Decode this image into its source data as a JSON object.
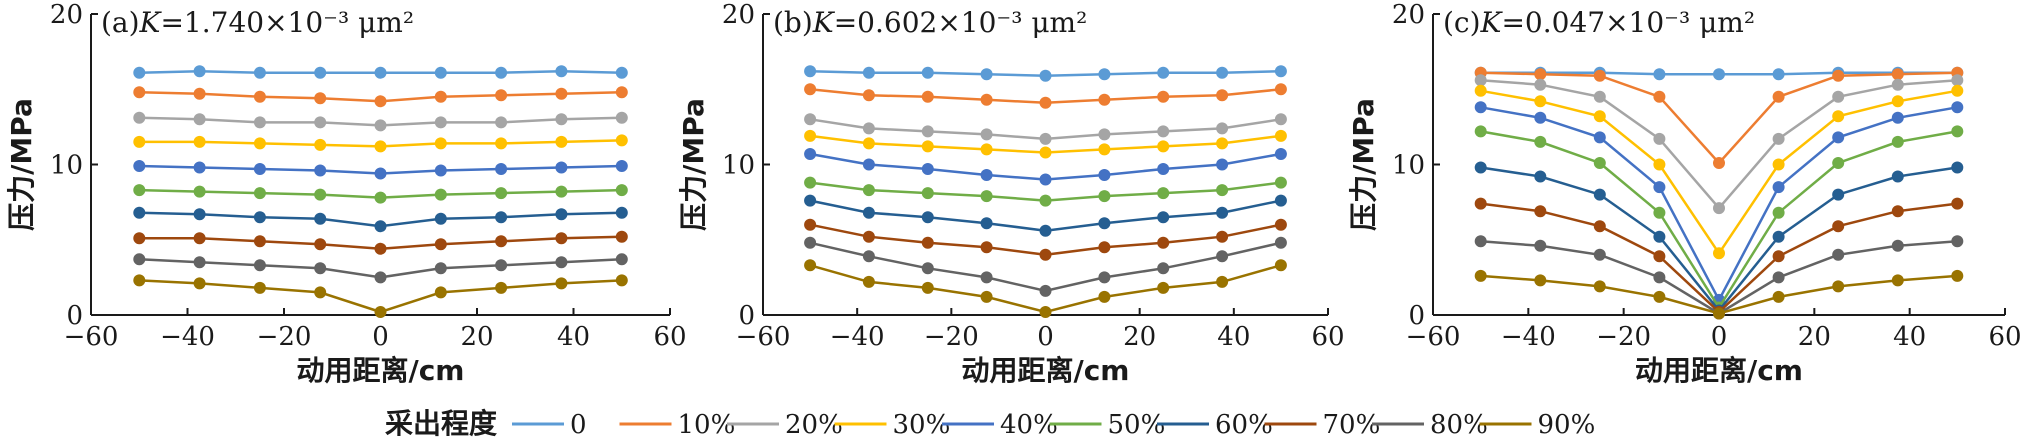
{
  "colors": [
    "#5B9BD5",
    "#ED7D31",
    "#A5A5A5",
    "#FFC000",
    "#4472C4",
    "#70AD47",
    "#255E91",
    "#9E480E",
    "#636363",
    "#997300"
  ],
  "legend": {
    "title": "采出程度",
    "labels": [
      "0",
      "10%",
      "20%",
      "30%",
      "40%",
      "50%",
      "60%",
      "70%",
      "80%",
      "90%"
    ]
  },
  "chart_data": [
    {
      "type": "line",
      "panel_label": "(a)",
      "k_symbol": "K",
      "k_value": "=1.740",
      "k_unit": "×10⁻³ μm²",
      "xlabel": "动用距离/cm",
      "ylabel": "压力/MPa",
      "xlim": [
        -60,
        60
      ],
      "ylim": [
        0,
        20
      ],
      "xticks": [
        -60,
        -40,
        -20,
        0,
        20,
        40,
        60
      ],
      "yticks": [
        0,
        10,
        20
      ],
      "x": [
        -50,
        -37.5,
        -25,
        -12.5,
        0,
        12.5,
        25,
        37.5,
        50
      ],
      "series": [
        {
          "name": "0",
          "values": [
            16.1,
            16.2,
            16.1,
            16.1,
            16.1,
            16.1,
            16.1,
            16.2,
            16.1
          ]
        },
        {
          "name": "10%",
          "values": [
            14.8,
            14.7,
            14.5,
            14.4,
            14.2,
            14.5,
            14.6,
            14.7,
            14.8
          ]
        },
        {
          "name": "20%",
          "values": [
            13.1,
            13.0,
            12.8,
            12.8,
            12.6,
            12.8,
            12.8,
            13.0,
            13.1
          ]
        },
        {
          "name": "30%",
          "values": [
            11.5,
            11.5,
            11.4,
            11.3,
            11.2,
            11.4,
            11.4,
            11.5,
            11.6
          ]
        },
        {
          "name": "40%",
          "values": [
            9.9,
            9.8,
            9.7,
            9.6,
            9.4,
            9.6,
            9.7,
            9.8,
            9.9
          ]
        },
        {
          "name": "50%",
          "values": [
            8.3,
            8.2,
            8.1,
            8.0,
            7.8,
            8.0,
            8.1,
            8.2,
            8.3
          ]
        },
        {
          "name": "60%",
          "values": [
            6.8,
            6.7,
            6.5,
            6.4,
            5.9,
            6.4,
            6.5,
            6.7,
            6.8
          ]
        },
        {
          "name": "70%",
          "values": [
            5.1,
            5.1,
            4.9,
            4.7,
            4.4,
            4.7,
            4.9,
            5.1,
            5.2
          ]
        },
        {
          "name": "80%",
          "values": [
            3.7,
            3.5,
            3.3,
            3.1,
            2.5,
            3.1,
            3.3,
            3.5,
            3.7
          ]
        },
        {
          "name": "90%",
          "values": [
            2.3,
            2.1,
            1.8,
            1.5,
            0.2,
            1.5,
            1.8,
            2.1,
            2.3
          ]
        }
      ]
    },
    {
      "type": "line",
      "panel_label": "(b)",
      "k_symbol": "K",
      "k_value": "=0.602",
      "k_unit": "×10⁻³ μm²",
      "xlabel": "动用距离/cm",
      "ylabel": "压力/MPa",
      "xlim": [
        -60,
        60
      ],
      "ylim": [
        0,
        20
      ],
      "xticks": [
        -60,
        -40,
        -20,
        0,
        20,
        40,
        60
      ],
      "yticks": [
        0,
        10,
        20
      ],
      "x": [
        -50,
        -37.5,
        -25,
        -12.5,
        0,
        12.5,
        25,
        37.5,
        50
      ],
      "series": [
        {
          "name": "0",
          "values": [
            16.2,
            16.1,
            16.1,
            16.0,
            15.9,
            16.0,
            16.1,
            16.1,
            16.2
          ]
        },
        {
          "name": "10%",
          "values": [
            15.0,
            14.6,
            14.5,
            14.3,
            14.1,
            14.3,
            14.5,
            14.6,
            15.0
          ]
        },
        {
          "name": "20%",
          "values": [
            13.0,
            12.4,
            12.2,
            12.0,
            11.7,
            12.0,
            12.2,
            12.4,
            13.0
          ]
        },
        {
          "name": "30%",
          "values": [
            11.9,
            11.4,
            11.2,
            11.0,
            10.8,
            11.0,
            11.2,
            11.4,
            11.9
          ]
        },
        {
          "name": "40%",
          "values": [
            10.7,
            10.0,
            9.7,
            9.3,
            9.0,
            9.3,
            9.7,
            10.0,
            10.7
          ]
        },
        {
          "name": "50%",
          "values": [
            8.8,
            8.3,
            8.1,
            7.9,
            7.6,
            7.9,
            8.1,
            8.3,
            8.8
          ]
        },
        {
          "name": "60%",
          "values": [
            7.6,
            6.8,
            6.5,
            6.1,
            5.6,
            6.1,
            6.5,
            6.8,
            7.6
          ]
        },
        {
          "name": "70%",
          "values": [
            6.0,
            5.2,
            4.8,
            4.5,
            4.0,
            4.5,
            4.8,
            5.2,
            6.0
          ]
        },
        {
          "name": "80%",
          "values": [
            4.8,
            3.9,
            3.1,
            2.5,
            1.6,
            2.5,
            3.1,
            3.9,
            4.8
          ]
        },
        {
          "name": "90%",
          "values": [
            3.3,
            2.2,
            1.8,
            1.2,
            0.2,
            1.2,
            1.8,
            2.2,
            3.3
          ]
        }
      ]
    },
    {
      "type": "line",
      "panel_label": "(c)",
      "k_symbol": "K",
      "k_value": "=0.047",
      "k_unit": "×10⁻³ μm²",
      "xlabel": "动用距离/cm",
      "ylabel": "压力/MPa",
      "xlim": [
        -60,
        60
      ],
      "ylim": [
        0,
        20
      ],
      "xticks": [
        -60,
        -40,
        -20,
        0,
        20,
        40,
        60
      ],
      "yticks": [
        0,
        10,
        20
      ],
      "x": [
        -50,
        -37.5,
        -25,
        -12.5,
        0,
        12.5,
        25,
        37.5,
        50
      ],
      "series": [
        {
          "name": "0",
          "values": [
            16.1,
            16.1,
            16.1,
            16.0,
            16.0,
            16.0,
            16.1,
            16.1,
            16.1
          ]
        },
        {
          "name": "10%",
          "values": [
            16.1,
            16.0,
            15.9,
            14.5,
            10.1,
            14.5,
            15.9,
            16.0,
            16.1
          ]
        },
        {
          "name": "20%",
          "values": [
            15.6,
            15.3,
            14.5,
            11.7,
            7.1,
            11.7,
            14.5,
            15.3,
            15.6
          ]
        },
        {
          "name": "30%",
          "values": [
            14.9,
            14.2,
            13.2,
            10.0,
            4.1,
            10.0,
            13.2,
            14.2,
            14.9
          ]
        },
        {
          "name": "40%",
          "values": [
            13.8,
            13.1,
            11.8,
            8.5,
            1.0,
            8.5,
            11.8,
            13.1,
            13.8
          ]
        },
        {
          "name": "50%",
          "values": [
            12.2,
            11.5,
            10.1,
            6.8,
            0.5,
            6.8,
            10.1,
            11.5,
            12.2
          ]
        },
        {
          "name": "60%",
          "values": [
            9.8,
            9.2,
            8.0,
            5.2,
            0.3,
            5.2,
            8.0,
            9.2,
            9.8
          ]
        },
        {
          "name": "70%",
          "values": [
            7.4,
            6.9,
            5.9,
            3.9,
            0.2,
            3.9,
            5.9,
            6.9,
            7.4
          ]
        },
        {
          "name": "80%",
          "values": [
            4.9,
            4.6,
            4.0,
            2.5,
            0.1,
            2.5,
            4.0,
            4.6,
            4.9
          ]
        },
        {
          "name": "90%",
          "values": [
            2.6,
            2.3,
            1.9,
            1.2,
            0.1,
            1.2,
            1.9,
            2.3,
            2.6
          ]
        }
      ]
    }
  ]
}
